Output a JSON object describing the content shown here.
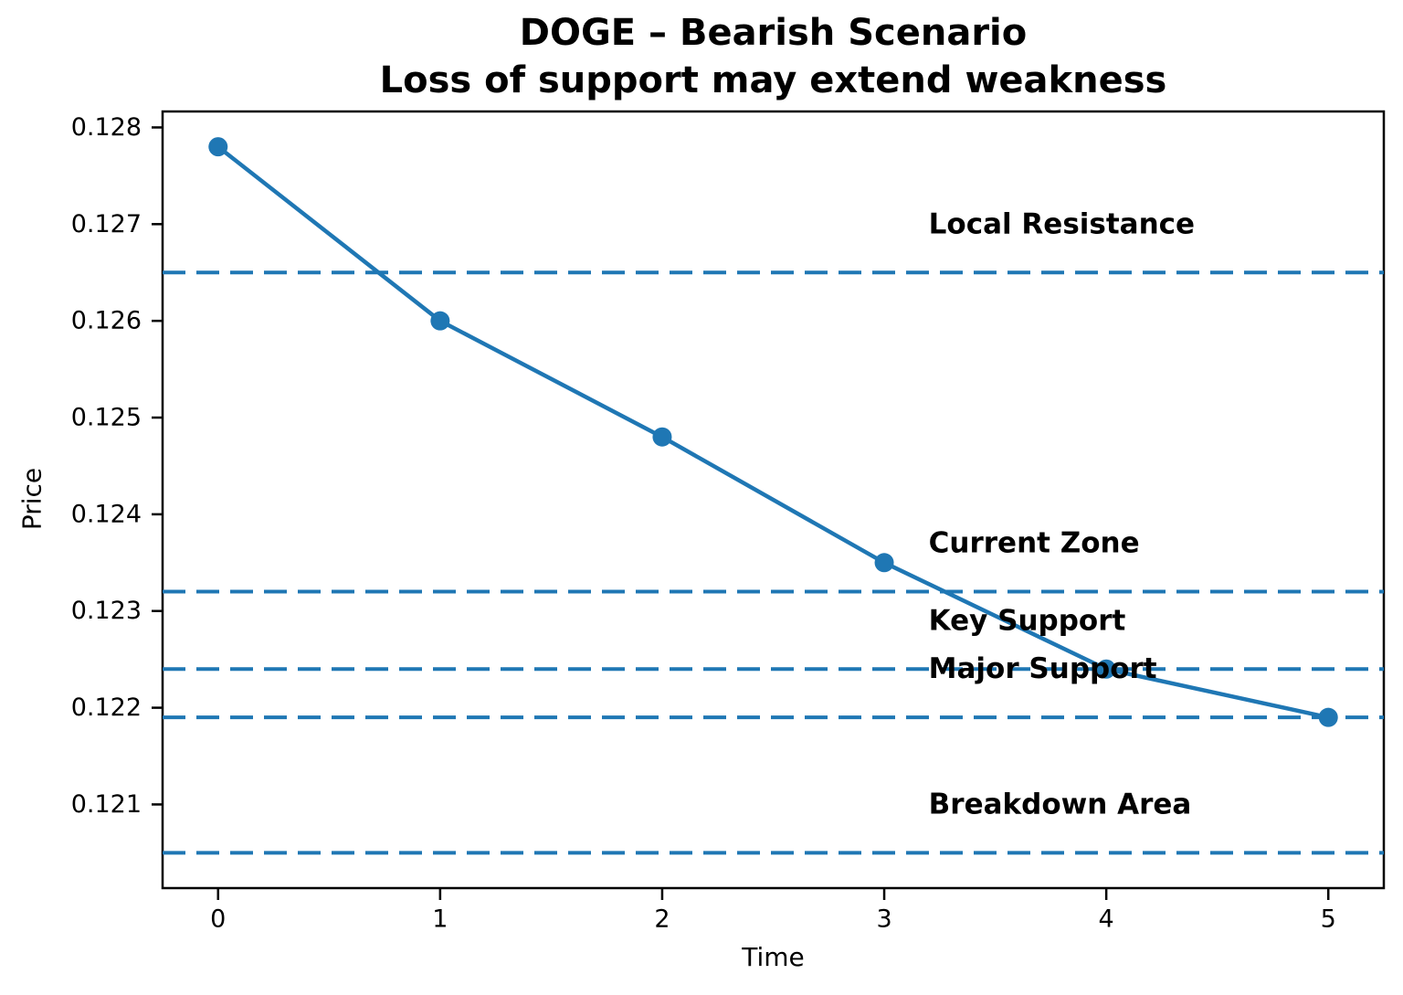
{
  "chart_data": {
    "type": "line",
    "title": "DOGE – Bearish Scenario",
    "subtitle": "Loss of support may extend weakness",
    "xlabel": "Time",
    "ylabel": "Price",
    "x": [
      0,
      1,
      2,
      3,
      4,
      5
    ],
    "series": [
      {
        "name": "price",
        "values": [
          0.1278,
          0.126,
          0.1248,
          0.1235,
          0.1224,
          0.1219
        ]
      }
    ],
    "hlines": [
      {
        "label": "Local Resistance",
        "value": 0.1265
      },
      {
        "label": "Current Zone",
        "value": 0.1232
      },
      {
        "label": "Key Support",
        "value": 0.1224
      },
      {
        "label": "Major Support",
        "value": 0.1219
      },
      {
        "label": "Breakdown Area",
        "value": 0.1205
      }
    ],
    "hline_label_x": 3.2,
    "hline_label_y_offset": 0.0005,
    "xticks": [
      0,
      1,
      2,
      3,
      4,
      5
    ],
    "yticks": [
      0.121,
      0.122,
      0.123,
      0.124,
      0.125,
      0.126,
      0.127,
      0.128
    ],
    "ytick_decimals": 3,
    "xlim": [
      -0.25,
      5.25
    ],
    "ylim": [
      0.120135,
      0.128165
    ],
    "grid": false,
    "legend": null,
    "line_color": "#1f77b4",
    "dashed_line_color": "#1f77b4",
    "frame_color": "#000000",
    "text_color": "#000000",
    "marker": "circle",
    "line_style_hlines": "dashed"
  }
}
